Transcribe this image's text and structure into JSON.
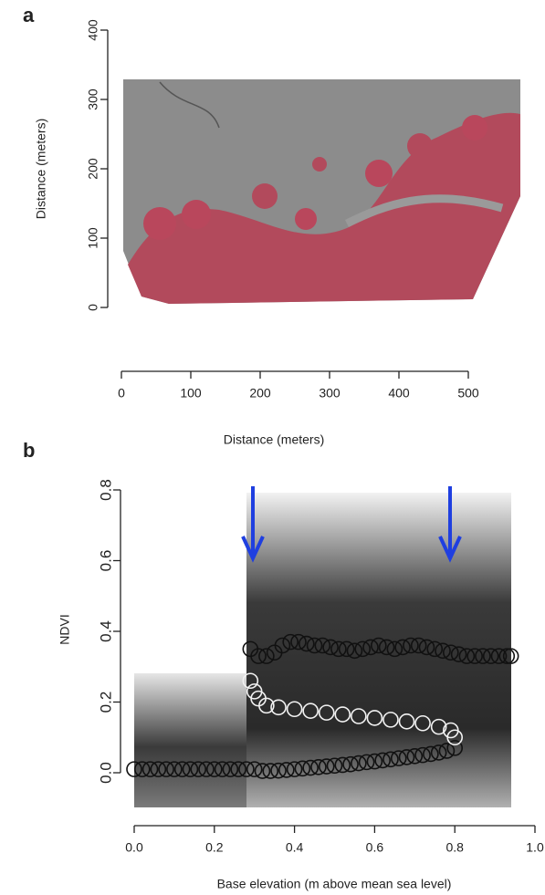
{
  "chart_data": [
    {
      "type": "image",
      "panel_label": "a",
      "xlabel": "Distance (meters)",
      "ylabel": "Distance (meters)",
      "xlim": [
        0,
        575
      ],
      "ylim": [
        0,
        400
      ],
      "xticks": [
        0,
        100,
        200,
        300,
        400,
        500
      ],
      "yticks": [
        0,
        100,
        200,
        300,
        400
      ]
    },
    {
      "type": "scatter",
      "panel_label": "b",
      "xlabel": "Base elevation (m above mean sea level)",
      "ylabel": "NDVI",
      "xlim": [
        0,
        1
      ],
      "ylim": [
        -0.1,
        0.82
      ],
      "xticks": [
        {
          "value": 0,
          "label": "0.0"
        },
        0.2,
        0.4,
        0.6,
        0.8,
        {
          "value": 1,
          "label": "1.0"
        }
      ],
      "yticks": [
        {
          "value": 0,
          "label": "0.0"
        },
        0.2,
        0.4,
        0.6,
        0.8
      ],
      "series": [
        {
          "color": "#111111",
          "x": [
            0,
            0.02,
            0.04,
            0.06,
            0.08,
            0.1,
            0.12,
            0.14,
            0.16,
            0.18,
            0.2,
            0.22,
            0.24,
            0.26,
            0.28,
            0.3,
            0.32,
            0.34,
            0.36,
            0.38,
            0.4,
            0.42,
            0.44,
            0.46,
            0.48,
            0.5,
            0.52,
            0.54,
            0.56,
            0.58,
            0.6,
            0.62,
            0.64,
            0.66,
            0.68,
            0.7,
            0.72,
            0.74,
            0.76,
            0.78,
            0.8
          ],
          "values": [
            0.01,
            0.01,
            0.01,
            0.01,
            0.01,
            0.01,
            0.01,
            0.01,
            0.01,
            0.01,
            0.01,
            0.01,
            0.01,
            0.01,
            0.01,
            0.01,
            0.005,
            0.005,
            0.006,
            0.008,
            0.01,
            0.012,
            0.014,
            0.016,
            0.018,
            0.02,
            0.022,
            0.024,
            0.027,
            0.03,
            0.032,
            0.035,
            0.038,
            0.041,
            0.044,
            0.047,
            0.05,
            0.053,
            0.057,
            0.062,
            0.07
          ]
        },
        {
          "color": "#f2f2f2",
          "x": [
            0.29,
            0.3,
            0.31,
            0.33,
            0.36,
            0.4,
            0.44,
            0.48,
            0.52,
            0.56,
            0.6,
            0.64,
            0.68,
            0.72,
            0.76,
            0.79,
            0.8
          ],
          "values": [
            0.26,
            0.23,
            0.21,
            0.19,
            0.185,
            0.18,
            0.175,
            0.17,
            0.165,
            0.16,
            0.155,
            0.15,
            0.145,
            0.14,
            0.13,
            0.12,
            0.1
          ]
        },
        {
          "color": "#111111",
          "x": [
            0.29,
            0.31,
            0.33,
            0.35,
            0.37,
            0.39,
            0.41,
            0.43,
            0.45,
            0.47,
            0.49,
            0.51,
            0.53,
            0.55,
            0.57,
            0.59,
            0.61,
            0.63,
            0.65,
            0.67,
            0.69,
            0.71,
            0.73,
            0.75,
            0.77,
            0.79,
            0.81,
            0.83,
            0.85,
            0.87,
            0.89,
            0.91,
            0.93,
            0.94
          ],
          "values": [
            0.35,
            0.33,
            0.33,
            0.34,
            0.36,
            0.37,
            0.37,
            0.365,
            0.36,
            0.36,
            0.355,
            0.35,
            0.35,
            0.345,
            0.35,
            0.355,
            0.36,
            0.355,
            0.35,
            0.355,
            0.36,
            0.36,
            0.355,
            0.35,
            0.345,
            0.34,
            0.335,
            0.33,
            0.33,
            0.33,
            0.33,
            0.33,
            0.33,
            0.33
          ]
        }
      ]
    }
  ]
}
